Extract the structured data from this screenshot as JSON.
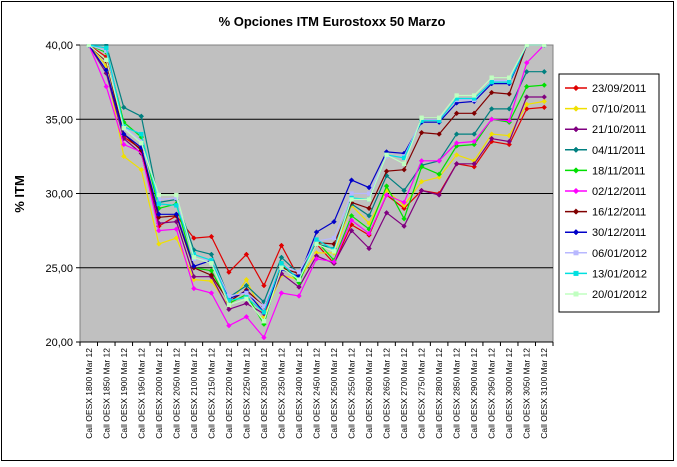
{
  "chart_data": {
    "type": "line",
    "title": "% Opciones ITM Eurostoxx 50 Marzo",
    "ylabel": "% ITM",
    "xlabel": "",
    "ylim": [
      20,
      40
    ],
    "yticks": [
      20,
      25,
      30,
      35,
      40
    ],
    "ytick_labels": [
      "20,00",
      "25,00",
      "30,00",
      "35,00",
      "40,00"
    ],
    "gridlines": "horizontal",
    "plot_background": "#c0c0c0",
    "legend_position": "right",
    "categories": [
      "Call OESX 1800 Mar 12",
      "Call OESX 1850 Mar 12",
      "Call OESX 1900 Mar 12",
      "Call OESX 1950 Mar 12",
      "Call OESX 2000 Mar 12",
      "Call OESX 2050 Mar 12",
      "Call OESX 2100 Mar 12",
      "Call OESX 2150 Mar 12",
      "Call OESX 2200 Mar 12",
      "Call OESX 2250 Mar 12",
      "Call OESX 2300 Mar 12",
      "Call OESX 2350 Mar 12",
      "Call OESX 2400 Mar 12",
      "Call OESX 2450 Mar 12",
      "Call OESX 2500 Mar 12",
      "Call OESX 2550 Mar 12",
      "Call OESX 2600 Mar 12",
      "Call OESX 2650 Mar 12",
      "Call OESX 2700 Mar 12",
      "Call OESX 2750 Mar 12",
      "Call OESX 2800 Mar 12",
      "Call OESX 2850 Mar 12",
      "Call OESX 2900 Mar 12",
      "Call OESX 2950 Mar 12",
      "Call OESX 3000 Mar 12",
      "Call OESX 3050 Mar 12",
      "Call OESX 3100 Mar 12"
    ],
    "series": [
      {
        "name": "23/09/2011",
        "color": "#e00000",
        "marker": "diamond",
        "values": [
          40.0,
          39.2,
          33.8,
          33.0,
          27.8,
          28.5,
          27.0,
          27.1,
          24.7,
          25.9,
          23.8,
          26.5,
          24.3,
          26.6,
          25.3,
          27.9,
          27.2,
          29.9,
          29.0,
          30.2,
          30.0,
          32.0,
          31.8,
          33.5,
          33.3,
          35.7,
          35.8
        ]
      },
      {
        "name": "07/10/2011",
        "color": "#f0e000",
        "marker": "diamond",
        "values": [
          40.0,
          38.6,
          32.5,
          31.6,
          26.6,
          27.0,
          24.2,
          24.1,
          22.4,
          24.2,
          21.7,
          24.5,
          24.2,
          26.0,
          26.0,
          29.2,
          28.0,
          30.2,
          29.2,
          30.8,
          31.1,
          32.6,
          32.2,
          34.0,
          33.9,
          36.0,
          36.2
        ]
      },
      {
        "name": "21/10/2011",
        "color": "#800080",
        "marker": "diamond",
        "values": [
          40.0,
          38.1,
          33.7,
          32.7,
          28.0,
          28.1,
          24.4,
          24.4,
          22.2,
          22.6,
          21.9,
          24.6,
          23.7,
          25.8,
          25.3,
          27.5,
          26.3,
          28.7,
          27.8,
          30.2,
          29.9,
          32.0,
          32.0,
          33.7,
          33.5,
          36.5,
          36.5
        ]
      },
      {
        "name": "04/11/2011",
        "color": "#008080",
        "marker": "diamond",
        "values": [
          40.0,
          40.0,
          35.8,
          35.2,
          29.4,
          29.6,
          26.2,
          25.9,
          23.0,
          23.8,
          22.7,
          25.7,
          24.6,
          26.6,
          26.3,
          29.3,
          28.5,
          31.2,
          30.2,
          31.9,
          32.2,
          34.0,
          34.0,
          35.7,
          35.7,
          38.2,
          38.2
        ]
      },
      {
        "name": "18/11/2011",
        "color": "#00e000",
        "marker": "diamond",
        "values": [
          40.0,
          39.5,
          34.8,
          33.8,
          29.0,
          29.3,
          25.0,
          24.8,
          22.6,
          23.2,
          21.2,
          25.3,
          24.0,
          26.8,
          25.5,
          28.5,
          27.6,
          30.5,
          28.3,
          31.8,
          31.3,
          33.2,
          33.3,
          35.0,
          34.8,
          37.2,
          37.3
        ]
      },
      {
        "name": "02/12/2011",
        "color": "#ff00ff",
        "marker": "diamond",
        "values": [
          40.0,
          37.2,
          33.3,
          32.8,
          27.5,
          27.6,
          23.6,
          23.3,
          21.1,
          21.7,
          20.3,
          23.3,
          23.1,
          25.6,
          25.4,
          28.2,
          27.3,
          29.9,
          29.4,
          32.2,
          32.2,
          33.4,
          33.5,
          35.0,
          34.9,
          38.8,
          40.0
        ]
      },
      {
        "name": "16/12/2011",
        "color": "#800000",
        "marker": "diamond",
        "values": [
          40.0,
          38.9,
          34.0,
          32.9,
          28.4,
          28.5,
          25.0,
          24.5,
          22.7,
          23.5,
          22.4,
          25.0,
          24.6,
          26.7,
          26.6,
          29.4,
          29.0,
          31.5,
          31.6,
          34.1,
          34.0,
          35.4,
          35.4,
          36.8,
          36.7,
          40.0,
          40.0
        ]
      },
      {
        "name": "30/12/2011",
        "color": "#0000c8",
        "marker": "diamond",
        "values": [
          40.0,
          38.3,
          34.0,
          33.1,
          28.6,
          28.6,
          25.1,
          25.5,
          22.9,
          23.4,
          22.0,
          24.9,
          24.4,
          27.4,
          28.1,
          30.9,
          30.4,
          32.8,
          32.7,
          34.8,
          34.8,
          36.1,
          36.2,
          37.4,
          37.4,
          40.0,
          40.0
        ]
      },
      {
        "name": "06/01/2012",
        "color": "#b8b8ff",
        "marker": "square",
        "values": [
          40.0,
          39.6,
          34.5,
          33.5,
          29.6,
          29.7,
          25.6,
          25.5,
          23.1,
          23.3,
          22.4,
          25.2,
          24.7,
          26.8,
          27.0,
          30.0,
          30.0,
          32.5,
          32.5,
          35.0,
          35.0,
          36.3,
          36.3,
          37.6,
          37.6,
          40.0,
          40.0
        ]
      },
      {
        "name": "13/01/2012",
        "color": "#00e0e0",
        "marker": "square",
        "values": [
          40.0,
          39.8,
          34.5,
          34.0,
          29.3,
          29.2,
          25.9,
          25.5,
          22.8,
          23.0,
          22.0,
          25.3,
          24.2,
          26.9,
          26.2,
          29.7,
          29.6,
          32.6,
          32.4,
          34.9,
          34.9,
          36.4,
          36.4,
          37.5,
          37.5,
          40.0,
          40.0
        ]
      },
      {
        "name": "20/01/2012",
        "color": "#c0ffc0",
        "marker": "square",
        "values": [
          40.0,
          39.0,
          34.4,
          33.4,
          29.9,
          29.9,
          25.7,
          25.3,
          22.5,
          22.9,
          21.4,
          25.0,
          24.2,
          26.6,
          26.1,
          29.6,
          29.6,
          32.6,
          32.0,
          35.1,
          35.1,
          36.6,
          36.6,
          37.8,
          37.8,
          40.0,
          40.0
        ]
      }
    ]
  }
}
